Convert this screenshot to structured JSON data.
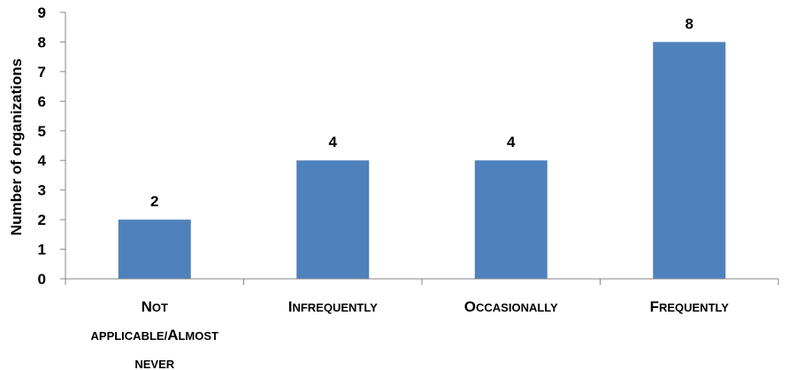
{
  "chart_data": {
    "type": "bar",
    "categories": [
      [
        "Not",
        "applicable/Almost",
        "never"
      ],
      [
        "Infrequently"
      ],
      [
        "Occasionally"
      ],
      [
        "Frequently"
      ]
    ],
    "values": [
      2,
      4,
      4,
      8
    ],
    "data_labels": [
      "2",
      "4",
      "4",
      "8"
    ],
    "ylabel": "Number of organizations",
    "xlabel": "",
    "title": "",
    "ylim": [
      0,
      9
    ],
    "yticks": [
      0,
      1,
      2,
      3,
      4,
      5,
      6,
      7,
      8,
      9
    ],
    "grid": false,
    "legend": "none",
    "bar_color": "#4f81bd",
    "category_label_style": "small-caps"
  }
}
